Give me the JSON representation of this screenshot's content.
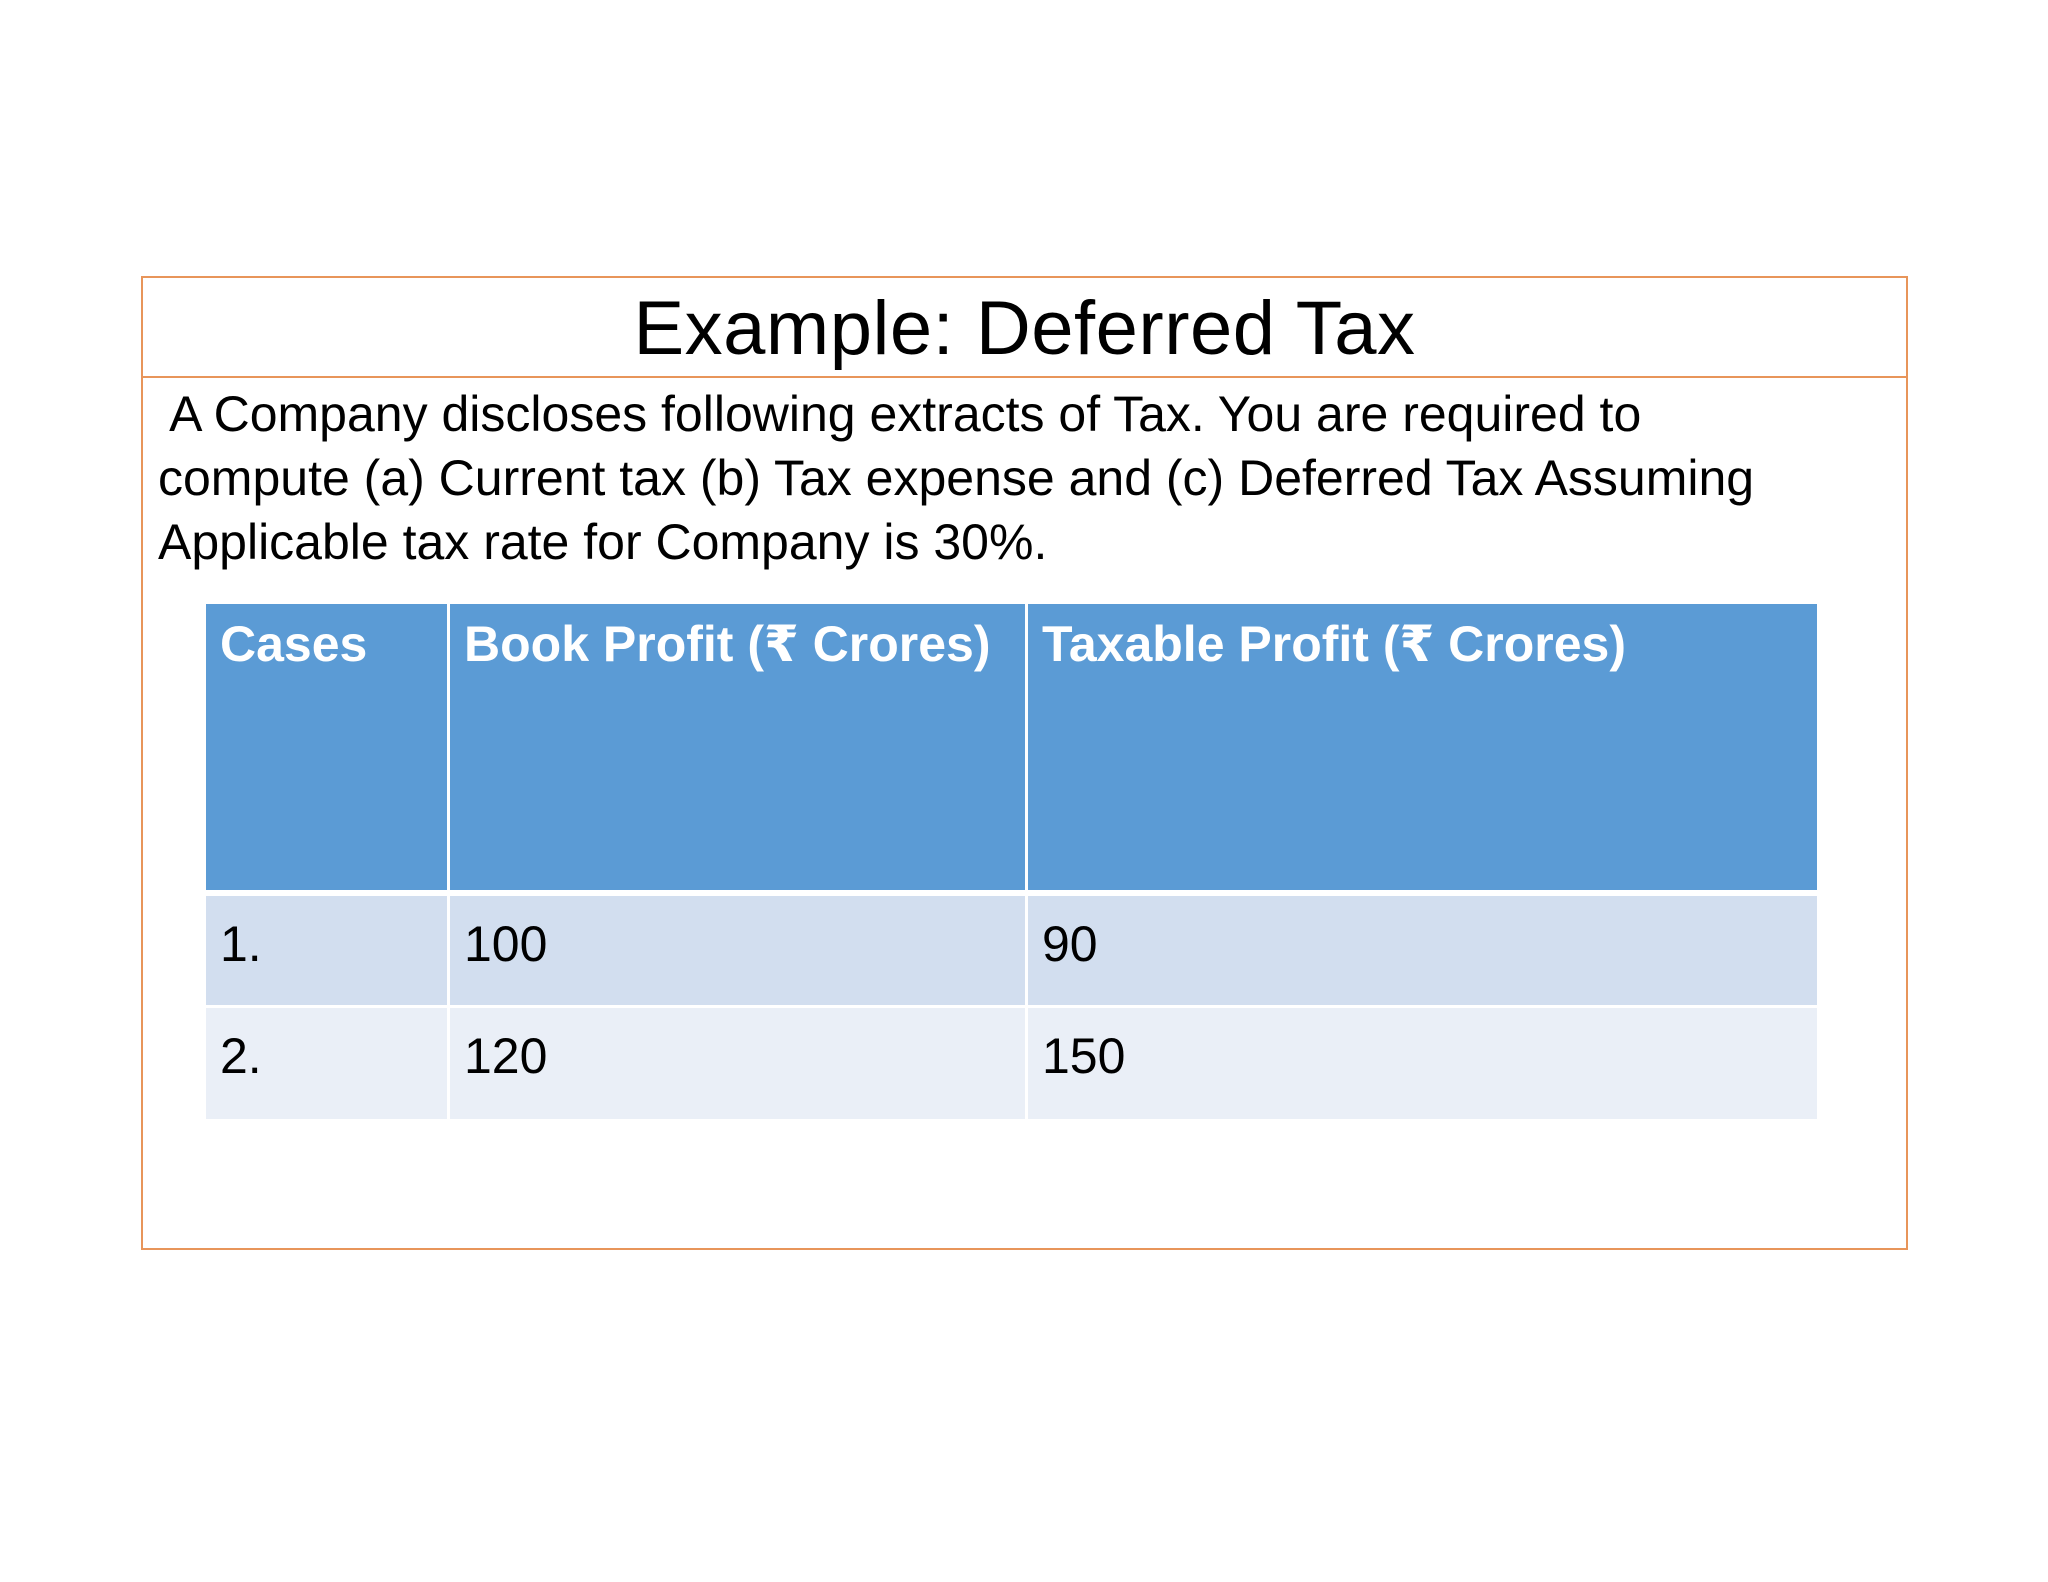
{
  "slide": {
    "title": "Example: Deferred Tax",
    "problem_lines": [
      " A Company discloses following extracts of Tax. You are required to",
      "compute (a) Current tax (b) Tax expense and (c) Deferred Tax Assuming",
      "Applicable tax rate for Company is 30%."
    ]
  },
  "table": {
    "headers": [
      "Cases",
      "Book Profit (₹ Crores)",
      "Taxable Profit (₹ Crores)"
    ],
    "rows": [
      [
        "1.",
        "100",
        "90"
      ],
      [
        "2.",
        "120",
        "150"
      ]
    ]
  },
  "colors": {
    "frame_border": "#E8955A",
    "header_fill": "#5B9BD5",
    "row_odd_fill": "#D2DEEF",
    "row_even_fill": "#EAEFF7"
  }
}
